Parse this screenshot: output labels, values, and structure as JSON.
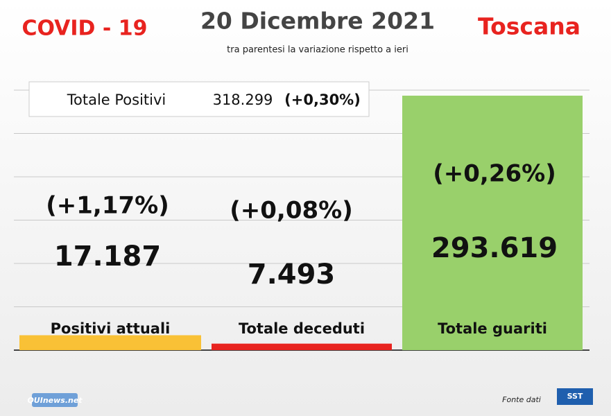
{
  "chart_data": {
    "type": "bar",
    "label_left": "COVID - 19",
    "title": "20 Dicembre 2021",
    "subtitle": "tra parentesi la variazione rispetto a ieri",
    "region": "Toscana",
    "total": {
      "label": "Totale Positivi",
      "value_label": "318.299",
      "change": "(+0,30%)"
    },
    "categories": [
      "Positivi attuali",
      "Totale deceduti",
      "Totale guariti"
    ],
    "values": [
      17187,
      7493,
      293619
    ],
    "value_labels": [
      "17.187",
      "7.493",
      "293.619"
    ],
    "changes": [
      "(+1,17%)",
      "(+0,08%)",
      "(+0,26%)"
    ],
    "colors": [
      "#f9c136",
      "#e8231f",
      "#99d06b"
    ],
    "ylim": [
      0,
      300000
    ],
    "yticks": [
      0,
      50000,
      100000,
      150000,
      200000,
      250000,
      300000
    ],
    "grid": true,
    "source": "Fonte dati",
    "logos": [
      "QUInews.net",
      "SST"
    ]
  }
}
